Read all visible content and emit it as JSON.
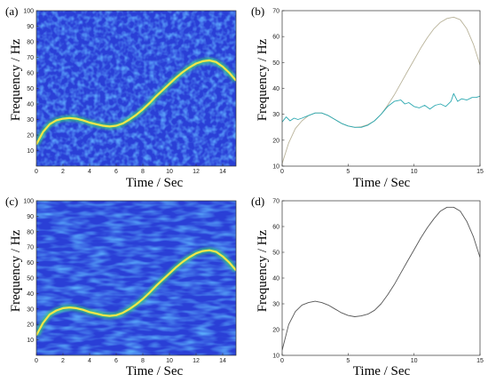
{
  "chart_data": [
    {
      "id": "a",
      "type": "heatmap",
      "panel_label": "(a)",
      "xlabel": "Time / Sec",
      "ylabel": "Frequency / Hz",
      "xlim": [
        0,
        15
      ],
      "ylim": [
        0,
        100
      ],
      "xticks": [
        0,
        2,
        4,
        6,
        8,
        10,
        12,
        14
      ],
      "yticks": [
        10,
        20,
        30,
        40,
        50,
        60,
        70,
        80,
        90,
        100
      ],
      "ridge": {
        "x": [
          0,
          0.5,
          1,
          1.5,
          2,
          2.5,
          3,
          3.5,
          4,
          4.5,
          5,
          5.5,
          6,
          6.5,
          7,
          7.5,
          8,
          8.5,
          9,
          9.5,
          10,
          10.5,
          11,
          11.5,
          12,
          12.5,
          13,
          13.5,
          14,
          14.5,
          15
        ],
        "y": [
          14,
          22,
          27,
          29.5,
          30.5,
          31,
          30.5,
          29.5,
          28,
          27,
          26,
          25.5,
          26,
          27.5,
          30,
          33,
          36.5,
          40.5,
          45,
          49,
          53,
          57,
          60.5,
          63.5,
          66,
          67.5,
          68,
          67,
          64,
          60,
          55
        ]
      },
      "colors": {
        "background": "#2a3fd6",
        "ridge": "#f2e64a"
      }
    },
    {
      "id": "b",
      "type": "line",
      "panel_label": "(b)",
      "xlabel": "Time / Sec",
      "ylabel": "Frequency / Hz",
      "xlim": [
        0,
        15
      ],
      "ylim": [
        10,
        70
      ],
      "xticks": [
        0,
        5,
        10,
        15
      ],
      "yticks": [
        10,
        20,
        30,
        40,
        50,
        60,
        70
      ],
      "series": [
        {
          "color": "#b9b39a",
          "x": [
            0,
            0.5,
            1,
            1.5,
            2,
            2.5,
            3,
            3.5,
            4,
            4.5,
            5,
            5.5,
            6,
            6.5,
            7,
            7.5,
            8,
            8.5,
            9,
            9.5,
            10,
            10.5,
            11,
            11.5,
            12,
            12.5,
            13,
            13.5,
            14,
            14.5,
            15
          ],
          "y": [
            11,
            19,
            24.5,
            27.5,
            29.5,
            30.5,
            30.5,
            29.5,
            28,
            26.5,
            25.5,
            25,
            25.2,
            26,
            27.5,
            30,
            33.5,
            37.5,
            42,
            46.5,
            51,
            55.5,
            59.5,
            63,
            65.5,
            67,
            67.5,
            66.5,
            63,
            57,
            49
          ]
        },
        {
          "color": "#2aa8b0",
          "x": [
            0,
            0.3,
            0.6,
            0.9,
            1.2,
            1.5,
            2,
            2.5,
            3,
            3.5,
            4,
            4.5,
            5,
            5.5,
            6,
            6.5,
            7,
            7.5,
            8,
            8.5,
            9,
            9.3,
            9.6,
            10,
            10.4,
            10.8,
            11.2,
            11.6,
            12,
            12.4,
            12.8,
            13,
            13.3,
            13.6,
            14,
            14.4,
            14.7,
            15
          ],
          "y": [
            27,
            29,
            27.5,
            28.5,
            28,
            28.5,
            29.5,
            30.5,
            30.5,
            29.5,
            28,
            26.5,
            25.5,
            25,
            25,
            25.8,
            27.5,
            30,
            33,
            35,
            35.5,
            34,
            34.5,
            33,
            32.5,
            33.5,
            32,
            33.5,
            34,
            33,
            35,
            38,
            35,
            36,
            35.5,
            36.5,
            36.5,
            37
          ]
        }
      ]
    },
    {
      "id": "c",
      "type": "heatmap",
      "panel_label": "(c)",
      "xlabel": "Time / Sec",
      "ylabel": "Frequency / Hz",
      "xlim": [
        0,
        15
      ],
      "ylim": [
        0,
        100
      ],
      "xticks": [
        0,
        2,
        4,
        6,
        8,
        10,
        12,
        14
      ],
      "yticks": [
        10,
        20,
        30,
        40,
        50,
        60,
        70,
        80,
        90,
        100
      ],
      "ridge": {
        "x": [
          0,
          0.5,
          1,
          1.5,
          2,
          2.5,
          3,
          3.5,
          4,
          4.5,
          5,
          5.5,
          6,
          6.5,
          7,
          7.5,
          8,
          8.5,
          9,
          9.5,
          10,
          10.5,
          11,
          11.5,
          12,
          12.5,
          13,
          13.5,
          14,
          14.5,
          15
        ],
        "y": [
          13,
          21,
          26.5,
          29,
          30.5,
          31,
          30.5,
          29.5,
          28,
          27,
          26,
          25.5,
          26,
          27.5,
          30,
          33,
          36.5,
          40.5,
          45,
          49,
          53,
          57,
          60.5,
          63.5,
          66,
          67.5,
          68,
          67,
          64,
          60,
          55
        ]
      },
      "colors": {
        "background": "#2a3fd6",
        "ridge": "#f2e64a"
      }
    },
    {
      "id": "d",
      "type": "line",
      "panel_label": "(d)",
      "xlabel": "Time / Sec",
      "ylabel": "Frequency / Hz",
      "xlim": [
        0,
        15
      ],
      "ylim": [
        10,
        70
      ],
      "xticks": [
        0,
        5,
        10,
        15
      ],
      "yticks": [
        10,
        20,
        30,
        40,
        50,
        60,
        70
      ],
      "series": [
        {
          "color": "#555555",
          "x": [
            0,
            0.5,
            1,
            1.5,
            2,
            2.5,
            3,
            3.5,
            4,
            4.5,
            5,
            5.5,
            6,
            6.5,
            7,
            7.5,
            8,
            8.5,
            9,
            9.5,
            10,
            10.5,
            11,
            11.5,
            12,
            12.5,
            13,
            13.5,
            14,
            14.5,
            15
          ],
          "y": [
            12,
            22,
            27,
            29.5,
            30.5,
            31,
            30.5,
            29.5,
            28,
            26.5,
            25.5,
            25,
            25.3,
            26,
            27.5,
            30,
            33.5,
            37.5,
            42,
            46.5,
            51,
            55.5,
            59.5,
            63,
            66,
            67.5,
            67.5,
            66,
            62,
            56,
            48
          ]
        }
      ]
    }
  ]
}
